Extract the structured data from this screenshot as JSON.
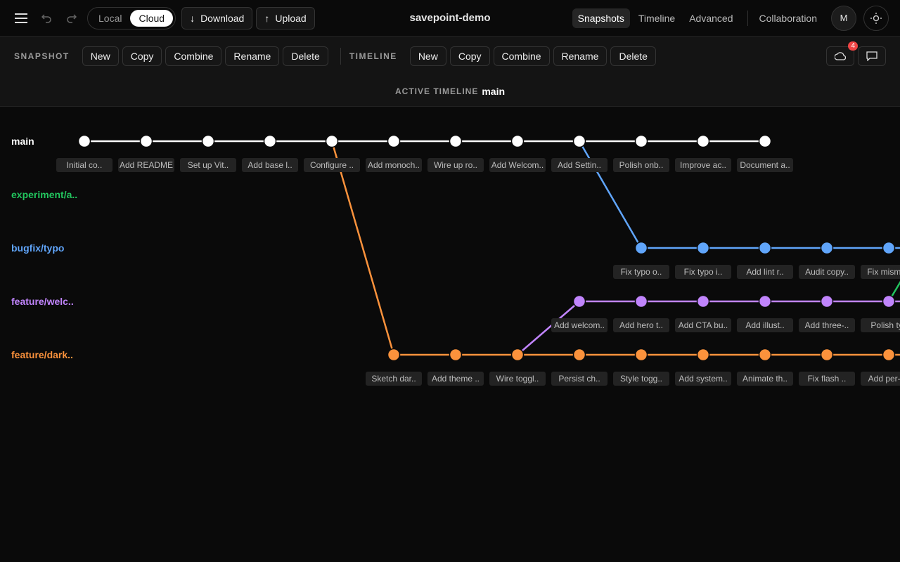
{
  "header": {
    "title": "savepoint-demo",
    "mode_toggle": [
      "Local",
      "Cloud"
    ],
    "download": "Download",
    "upload": "Upload",
    "nav": [
      "Snapshots",
      "Timeline",
      "Advanced"
    ],
    "collaboration": "Collaboration",
    "avatar": "M"
  },
  "toolbar": {
    "snapshot_label": "SNAPSHOT",
    "snapshot_buttons": [
      "New",
      "Copy",
      "Combine",
      "Rename",
      "Delete"
    ],
    "timeline_label": "TIMELINE",
    "timeline_buttons": [
      "New",
      "Copy",
      "Combine",
      "Rename",
      "Delete"
    ],
    "notification_count": "4"
  },
  "active_timeline": {
    "label": "ACTIVE TIMELINE",
    "name": "main"
  },
  "graph": {
    "timelines": [
      {
        "name": "main",
        "color": "#ffffff",
        "snapshots": [
          "Initial co..",
          "Add README",
          "Set up Vit..",
          "Add base l..",
          "Configure ..",
          "Add monoch..",
          "Wire up ro..",
          "Add Welcom..",
          "Add Settin..",
          "Polish onb..",
          "Improve ac..",
          "Document a.."
        ]
      },
      {
        "name": "experiment/a..",
        "color": "#22c55e",
        "snapshots": []
      },
      {
        "name": "bugfix/typo",
        "color": "#60a5fa",
        "snapshots": [
          "Fix typo o..",
          "Fix typo i..",
          "Add lint r..",
          "Audit copy..",
          "Fix misma.."
        ]
      },
      {
        "name": "feature/welc..",
        "color": "#c084fc",
        "snapshots": [
          "Add welcom..",
          "Add hero t..",
          "Add CTA bu..",
          "Add illust..",
          "Add three-..",
          "Polish ty.."
        ]
      },
      {
        "name": "feature/dark..",
        "color": "#fb923c",
        "snapshots": [
          "Sketch dar..",
          "Add theme ..",
          "Wire toggl..",
          "Persist ch..",
          "Style togg..",
          "Add system..",
          "Animate th..",
          "Fix flash ..",
          "Add per-s.."
        ]
      }
    ]
  }
}
